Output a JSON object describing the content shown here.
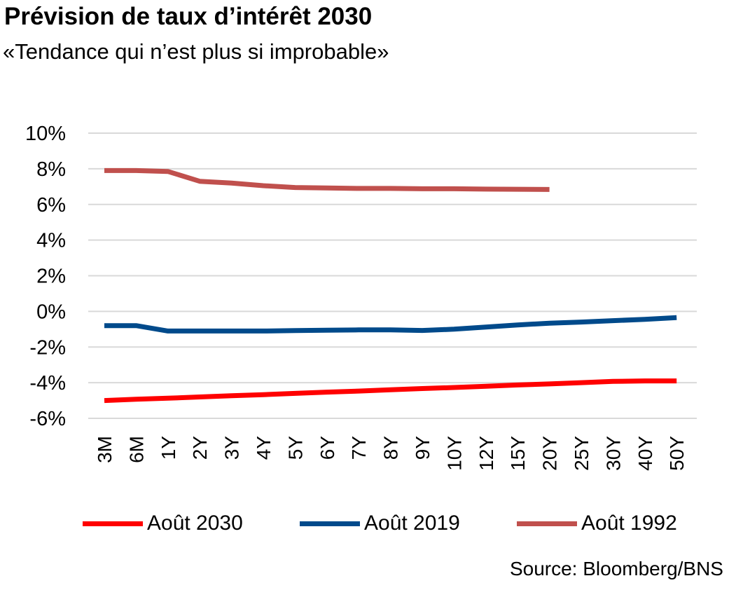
{
  "header": {
    "title": "Prévision de taux d’intérêt 2030",
    "subtitle": "«Tendance qui n’est plus si improbable»"
  },
  "footer": {
    "source": "Source: Bloomberg/BNS"
  },
  "chart_data": {
    "type": "line",
    "categories": [
      "3M",
      "6M",
      "1Y",
      "2Y",
      "3Y",
      "4Y",
      "5Y",
      "6Y",
      "7Y",
      "8Y",
      "9Y",
      "10Y",
      "12Y",
      "15Y",
      "20Y",
      "25Y",
      "30Y",
      "40Y",
      "50Y"
    ],
    "y_ticks": [
      "10%",
      "8%",
      "6%",
      "4%",
      "2%",
      "0%",
      "-2%",
      "-4%",
      "-6%"
    ],
    "ylim": [
      -6,
      10
    ],
    "grid": true,
    "legend_position": "bottom",
    "series": [
      {
        "name": "Août 2030",
        "color": "#ff0000",
        "values": [
          -5.0,
          -4.93,
          -4.87,
          -4.8,
          -4.73,
          -4.67,
          -4.6,
          -4.53,
          -4.47,
          -4.4,
          -4.33,
          -4.27,
          -4.2,
          -4.13,
          -4.07,
          -4.0,
          -3.93,
          -3.9,
          -3.9
        ]
      },
      {
        "name": "Août 2019",
        "color": "#004a8b",
        "values": [
          -0.8,
          -0.8,
          -1.1,
          -1.1,
          -1.1,
          -1.1,
          -1.08,
          -1.06,
          -1.04,
          -1.04,
          -1.07,
          -1.0,
          -0.88,
          -0.76,
          -0.66,
          -0.6,
          -0.52,
          -0.45,
          -0.35
        ]
      },
      {
        "name": "Août 1992",
        "color": "#c0504d",
        "values": [
          7.9,
          7.9,
          7.85,
          7.3,
          7.2,
          7.05,
          6.95,
          6.92,
          6.9,
          6.9,
          6.88,
          6.88,
          6.86,
          6.85,
          6.84,
          null,
          null,
          null,
          null
        ]
      }
    ]
  }
}
